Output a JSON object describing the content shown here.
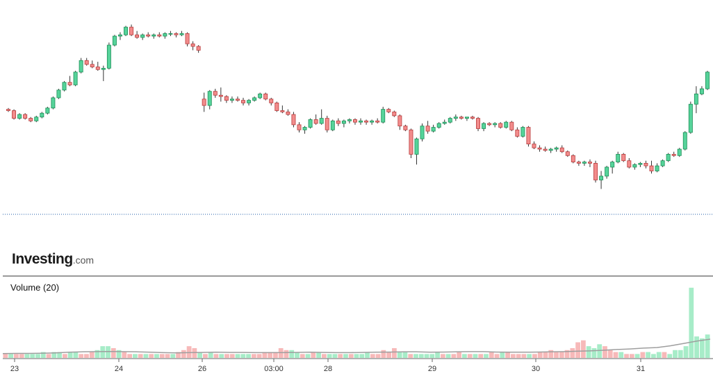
{
  "chart_data": {
    "type": "candlestick",
    "colors": {
      "up": "#2bb673",
      "down": "#e35b5b",
      "up_fill": "#56d39a",
      "down_fill": "#f28c8c",
      "volume_up": "#a7ecc8",
      "volume_down": "#f7b9b9",
      "volume_ma": "#9e9e9e",
      "dotted_line": "#1f5ea8"
    },
    "x_ticks": [
      "23",
      "24",
      "26",
      "03:00",
      "28",
      "29",
      "30",
      "31"
    ],
    "volume_label": "Volume (20)",
    "price_series": [
      [
        0.2,
        0.21,
        0.18,
        0.19
      ],
      [
        0.19,
        0.2,
        0.12,
        0.13
      ],
      [
        0.13,
        0.17,
        0.12,
        0.16
      ],
      [
        0.16,
        0.17,
        0.12,
        0.13
      ],
      [
        0.13,
        0.14,
        0.1,
        0.11
      ],
      [
        0.11,
        0.15,
        0.1,
        0.14
      ],
      [
        0.14,
        0.18,
        0.13,
        0.17
      ],
      [
        0.17,
        0.22,
        0.16,
        0.21
      ],
      [
        0.21,
        0.3,
        0.2,
        0.29
      ],
      [
        0.29,
        0.36,
        0.28,
        0.35
      ],
      [
        0.35,
        0.42,
        0.34,
        0.41
      ],
      [
        0.41,
        0.46,
        0.38,
        0.39
      ],
      [
        0.39,
        0.5,
        0.38,
        0.49
      ],
      [
        0.49,
        0.6,
        0.48,
        0.58
      ],
      [
        0.58,
        0.6,
        0.54,
        0.55
      ],
      [
        0.55,
        0.58,
        0.52,
        0.53
      ],
      [
        0.53,
        0.57,
        0.5,
        0.51
      ],
      [
        0.51,
        0.54,
        0.42,
        0.52
      ],
      [
        0.52,
        0.72,
        0.51,
        0.7
      ],
      [
        0.7,
        0.78,
        0.69,
        0.77
      ],
      [
        0.77,
        0.8,
        0.74,
        0.78
      ],
      [
        0.78,
        0.85,
        0.77,
        0.84
      ],
      [
        0.84,
        0.86,
        0.77,
        0.78
      ],
      [
        0.78,
        0.81,
        0.75,
        0.76
      ],
      [
        0.76,
        0.79,
        0.74,
        0.78
      ],
      [
        0.78,
        0.8,
        0.76,
        0.77
      ],
      [
        0.77,
        0.79,
        0.75,
        0.78
      ],
      [
        0.78,
        0.8,
        0.76,
        0.77
      ],
      [
        0.77,
        0.8,
        0.75,
        0.79
      ],
      [
        0.79,
        0.81,
        0.77,
        0.79
      ],
      [
        0.79,
        0.8,
        0.76,
        0.78
      ],
      [
        0.78,
        0.81,
        0.77,
        0.79
      ],
      [
        0.79,
        0.8,
        0.69,
        0.71
      ],
      [
        0.71,
        0.73,
        0.66,
        0.69
      ],
      [
        0.69,
        0.7,
        0.64,
        0.66
      ],
      [
        0.28,
        0.33,
        0.18,
        0.23
      ],
      [
        0.23,
        0.35,
        0.2,
        0.34
      ],
      [
        0.34,
        0.36,
        0.29,
        0.31
      ],
      [
        0.31,
        0.37,
        0.26,
        0.3
      ],
      [
        0.3,
        0.31,
        0.25,
        0.27
      ],
      [
        0.27,
        0.3,
        0.25,
        0.28
      ],
      [
        0.28,
        0.3,
        0.26,
        0.27
      ],
      [
        0.27,
        0.29,
        0.23,
        0.25
      ],
      [
        0.25,
        0.28,
        0.23,
        0.27
      ],
      [
        0.27,
        0.3,
        0.26,
        0.29
      ],
      [
        0.29,
        0.33,
        0.28,
        0.32
      ],
      [
        0.32,
        0.33,
        0.27,
        0.28
      ],
      [
        0.28,
        0.29,
        0.23,
        0.25
      ],
      [
        0.25,
        0.26,
        0.18,
        0.19
      ],
      [
        0.19,
        0.23,
        0.17,
        0.18
      ],
      [
        0.18,
        0.2,
        0.15,
        0.16
      ],
      [
        0.16,
        0.18,
        0.06,
        0.08
      ],
      [
        0.08,
        0.1,
        0.02,
        0.04
      ],
      [
        0.04,
        0.07,
        0.01,
        0.06
      ],
      [
        0.06,
        0.13,
        0.05,
        0.12
      ],
      [
        0.12,
        0.16,
        0.08,
        0.09
      ],
      [
        0.09,
        0.2,
        0.08,
        0.13
      ],
      [
        0.13,
        0.15,
        0.02,
        0.04
      ],
      [
        0.04,
        0.12,
        0.03,
        0.11
      ],
      [
        0.11,
        0.13,
        0.07,
        0.09
      ],
      [
        0.09,
        0.12,
        0.06,
        0.11
      ],
      [
        0.11,
        0.13,
        0.09,
        0.12
      ],
      [
        0.12,
        0.13,
        0.08,
        0.1
      ],
      [
        0.1,
        0.13,
        0.08,
        0.11
      ],
      [
        0.11,
        0.12,
        0.08,
        0.1
      ],
      [
        0.1,
        0.12,
        0.08,
        0.11
      ],
      [
        0.11,
        0.13,
        0.09,
        0.1
      ],
      [
        0.1,
        0.22,
        0.09,
        0.2
      ],
      [
        0.2,
        0.21,
        0.17,
        0.18
      ],
      [
        0.18,
        0.19,
        0.14,
        0.15
      ],
      [
        0.15,
        0.16,
        0.04,
        0.07
      ],
      [
        0.07,
        0.08,
        0.03,
        0.04
      ],
      [
        0.04,
        0.05,
        -0.18,
        -0.15
      ],
      [
        -0.15,
        -0.02,
        -0.23,
        -0.03
      ],
      [
        -0.03,
        0.09,
        -0.05,
        0.07
      ],
      [
        0.07,
        0.11,
        0.01,
        0.03
      ],
      [
        0.03,
        0.08,
        0.02,
        0.06
      ],
      [
        0.06,
        0.1,
        0.05,
        0.09
      ],
      [
        0.09,
        0.12,
        0.08,
        0.1
      ],
      [
        0.1,
        0.14,
        0.09,
        0.13
      ],
      [
        0.13,
        0.16,
        0.11,
        0.14
      ],
      [
        0.14,
        0.15,
        0.12,
        0.13
      ],
      [
        0.13,
        0.14,
        0.11,
        0.14
      ],
      [
        0.14,
        0.15,
        0.12,
        0.13
      ],
      [
        0.13,
        0.14,
        0.03,
        0.05
      ],
      [
        0.05,
        0.1,
        0.03,
        0.09
      ],
      [
        0.09,
        0.1,
        0.07,
        0.08
      ],
      [
        0.08,
        0.1,
        0.06,
        0.09
      ],
      [
        0.09,
        0.1,
        0.05,
        0.06
      ],
      [
        0.06,
        0.11,
        0.05,
        0.1
      ],
      [
        0.1,
        0.11,
        0.03,
        0.04
      ],
      [
        0.04,
        0.06,
        -0.02,
        -0.01
      ],
      [
        -0.01,
        0.07,
        -0.02,
        0.06
      ],
      [
        0.06,
        0.07,
        -0.09,
        -0.07
      ],
      [
        -0.07,
        -0.05,
        -0.11,
        -0.1
      ],
      [
        -0.1,
        -0.08,
        -0.13,
        -0.11
      ],
      [
        -0.11,
        -0.09,
        -0.13,
        -0.12
      ],
      [
        -0.12,
        -0.1,
        -0.14,
        -0.11
      ],
      [
        -0.11,
        -0.09,
        -0.13,
        -0.1
      ],
      [
        -0.1,
        -0.08,
        -0.14,
        -0.13
      ],
      [
        -0.13,
        -0.12,
        -0.17,
        -0.16
      ],
      [
        -0.16,
        -0.15,
        -0.22,
        -0.21
      ],
      [
        -0.21,
        -0.2,
        -0.24,
        -0.22
      ],
      [
        -0.22,
        -0.2,
        -0.24,
        -0.21
      ],
      [
        -0.21,
        -0.19,
        -0.25,
        -0.22
      ],
      [
        -0.22,
        -0.2,
        -0.37,
        -0.35
      ],
      [
        -0.35,
        -0.28,
        -0.42,
        -0.32
      ],
      [
        -0.32,
        -0.24,
        -0.34,
        -0.25
      ],
      [
        -0.25,
        -0.2,
        -0.3,
        -0.21
      ],
      [
        -0.21,
        -0.13,
        -0.22,
        -0.15
      ],
      [
        -0.15,
        -0.14,
        -0.21,
        -0.2
      ],
      [
        -0.2,
        -0.18,
        -0.26,
        -0.25
      ],
      [
        -0.25,
        -0.22,
        -0.27,
        -0.23
      ],
      [
        -0.23,
        -0.21,
        -0.25,
        -0.22
      ],
      [
        -0.22,
        -0.2,
        -0.26,
        -0.24
      ],
      [
        -0.24,
        -0.2,
        -0.3,
        -0.28
      ],
      [
        -0.28,
        -0.22,
        -0.29,
        -0.24
      ],
      [
        -0.24,
        -0.19,
        -0.25,
        -0.2
      ],
      [
        -0.2,
        -0.14,
        -0.21,
        -0.15
      ],
      [
        -0.15,
        -0.13,
        -0.17,
        -0.16
      ],
      [
        -0.16,
        -0.1,
        -0.17,
        -0.11
      ],
      [
        -0.11,
        0.03,
        -0.12,
        0.02
      ],
      [
        0.02,
        0.26,
        0.01,
        0.24
      ],
      [
        0.24,
        0.38,
        0.17,
        0.32
      ],
      [
        0.32,
        0.38,
        0.31,
        0.36
      ],
      [
        0.36,
        0.5,
        0.35,
        0.49
      ]
    ],
    "volume_series": [
      [
        2,
        0
      ],
      [
        2,
        1
      ],
      [
        2,
        0
      ],
      [
        2,
        0
      ],
      [
        2,
        1
      ],
      [
        2,
        1
      ],
      [
        2,
        1
      ],
      [
        3,
        1
      ],
      [
        2,
        0
      ],
      [
        3,
        1
      ],
      [
        3,
        1
      ],
      [
        2,
        0
      ],
      [
        3,
        1
      ],
      [
        3,
        1
      ],
      [
        2,
        0
      ],
      [
        2,
        0
      ],
      [
        3,
        0
      ],
      [
        4,
        1
      ],
      [
        6,
        1
      ],
      [
        6,
        1
      ],
      [
        5,
        0
      ],
      [
        4,
        1
      ],
      [
        3,
        0
      ],
      [
        2,
        0
      ],
      [
        2,
        1
      ],
      [
        2,
        0
      ],
      [
        2,
        1
      ],
      [
        2,
        0
      ],
      [
        2,
        1
      ],
      [
        2,
        0
      ],
      [
        2,
        0
      ],
      [
        2,
        1
      ],
      [
        3,
        0
      ],
      [
        4,
        0
      ],
      [
        6,
        0
      ],
      [
        5,
        0
      ],
      [
        3,
        1
      ],
      [
        2,
        0
      ],
      [
        3,
        1
      ],
      [
        2,
        0
      ],
      [
        2,
        1
      ],
      [
        2,
        0
      ],
      [
        2,
        0
      ],
      [
        2,
        1
      ],
      [
        2,
        1
      ],
      [
        2,
        1
      ],
      [
        2,
        0
      ],
      [
        2,
        0
      ],
      [
        3,
        0
      ],
      [
        3,
        0
      ],
      [
        3,
        0
      ],
      [
        5,
        0
      ],
      [
        4,
        0
      ],
      [
        4,
        1
      ],
      [
        3,
        1
      ],
      [
        2,
        0
      ],
      [
        2,
        1
      ],
      [
        3,
        0
      ],
      [
        3,
        1
      ],
      [
        2,
        0
      ],
      [
        2,
        1
      ],
      [
        2,
        1
      ],
      [
        2,
        0
      ],
      [
        2,
        1
      ],
      [
        2,
        0
      ],
      [
        2,
        1
      ],
      [
        2,
        1
      ],
      [
        3,
        1
      ],
      [
        2,
        0
      ],
      [
        2,
        0
      ],
      [
        4,
        0
      ],
      [
        3,
        0
      ],
      [
        5,
        0
      ],
      [
        3,
        1
      ],
      [
        3,
        1
      ],
      [
        2,
        0
      ],
      [
        2,
        1
      ],
      [
        2,
        1
      ],
      [
        2,
        1
      ],
      [
        2,
        1
      ],
      [
        3,
        1
      ],
      [
        2,
        0
      ],
      [
        2,
        1
      ],
      [
        2,
        0
      ],
      [
        3,
        0
      ],
      [
        2,
        1
      ],
      [
        2,
        0
      ],
      [
        2,
        1
      ],
      [
        2,
        0
      ],
      [
        2,
        1
      ],
      [
        3,
        0
      ],
      [
        2,
        0
      ],
      [
        3,
        1
      ],
      [
        3,
        0
      ],
      [
        2,
        0
      ],
      [
        2,
        0
      ],
      [
        2,
        0
      ],
      [
        2,
        1
      ],
      [
        2,
        0
      ],
      [
        3,
        0
      ],
      [
        3,
        0
      ],
      [
        4,
        0
      ],
      [
        3,
        0
      ],
      [
        3,
        0
      ],
      [
        4,
        0
      ],
      [
        5,
        0
      ],
      [
        8,
        0
      ],
      [
        9,
        0
      ],
      [
        6,
        1
      ],
      [
        5,
        1
      ],
      [
        7,
        1
      ],
      [
        6,
        0
      ],
      [
        4,
        0
      ],
      [
        3,
        0
      ],
      [
        3,
        1
      ],
      [
        2,
        0
      ],
      [
        2,
        0
      ],
      [
        2,
        1
      ],
      [
        3,
        0
      ],
      [
        3,
        1
      ],
      [
        2,
        1
      ],
      [
        3,
        1
      ],
      [
        3,
        0
      ],
      [
        2,
        1
      ],
      [
        4,
        1
      ],
      [
        4,
        1
      ],
      [
        6,
        1
      ],
      [
        36,
        1
      ],
      [
        11,
        1
      ],
      [
        10,
        1
      ],
      [
        12,
        1
      ]
    ],
    "volume_ma": [
      2.2,
      2.3,
      2.3,
      2.4,
      2.6,
      2.9,
      3.1,
      3.2,
      3.3,
      3.2,
      3.1,
      2.9,
      2.7,
      2.6,
      2.7,
      2.8,
      2.9,
      2.8,
      2.8,
      2.7,
      2.7,
      2.7,
      2.8,
      2.9,
      2.8,
      2.7,
      2.7,
      2.8,
      2.9,
      3.0,
      3.1,
      3.1,
      2.9,
      3.0,
      3.1,
      3.2,
      3.2,
      3.0,
      2.9,
      2.9,
      3.0,
      3.1,
      3.2,
      3.4,
      3.6,
      3.9,
      4.3,
      4.6,
      5.0,
      5.3,
      6.2,
      7.4,
      8.6,
      9.6
    ]
  }
}
